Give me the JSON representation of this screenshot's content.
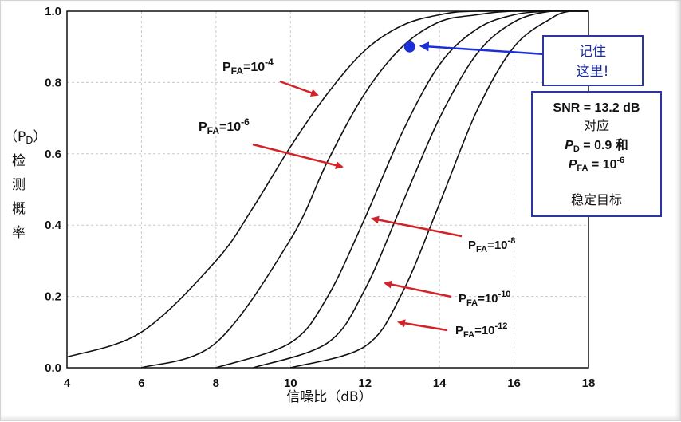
{
  "chart_data": {
    "type": "line",
    "x_ticks": [
      "4",
      "6",
      "8",
      "10",
      "12",
      "14",
      "16",
      "18"
    ],
    "y_ticks": [
      "0.0",
      "0.2",
      "0.4",
      "0.6",
      "0.8",
      "1.0"
    ],
    "xlim": [
      4,
      18
    ],
    "ylim": [
      0,
      1
    ],
    "grid": true,
    "xlabel": "信噪比（dB）",
    "ylabel_prefix": "（P",
    "ylabel_sub": "D",
    "ylabel_suffix": "）",
    "ylabel_chars": [
      "检",
      "测",
      "概",
      "率"
    ],
    "series": [
      {
        "label_base": "P",
        "label_sub": "FA",
        "label_mid": "=10",
        "label_exp": "-4",
        "x": [
          4,
          6,
          8,
          9,
          10,
          11,
          12,
          13,
          14,
          15
        ],
        "y": [
          0.03,
          0.1,
          0.3,
          0.45,
          0.62,
          0.77,
          0.89,
          0.96,
          0.99,
          1.0
        ]
      },
      {
        "label_base": "P",
        "label_sub": "FA",
        "label_mid": "=10",
        "label_exp": "-6",
        "x": [
          6,
          8,
          10,
          11,
          12,
          13,
          14,
          15,
          16
        ],
        "y": [
          0.0,
          0.07,
          0.36,
          0.58,
          0.77,
          0.9,
          0.97,
          0.99,
          1.0
        ]
      },
      {
        "label_base": "P",
        "label_sub": "FA",
        "label_mid": "=10",
        "label_exp": "-8",
        "x": [
          8,
          10,
          11,
          12,
          13,
          14,
          15,
          16,
          17
        ],
        "y": [
          0.0,
          0.07,
          0.2,
          0.42,
          0.66,
          0.85,
          0.95,
          0.99,
          1.0
        ]
      },
      {
        "label_base": "P",
        "label_sub": "FA",
        "label_mid": "=10",
        "label_exp": "-10",
        "x": [
          9,
          11,
          12,
          13,
          14,
          15,
          16,
          17
        ],
        "y": [
          0.0,
          0.07,
          0.22,
          0.46,
          0.7,
          0.88,
          0.97,
          1.0
        ]
      },
      {
        "label_base": "P",
        "label_sub": "FA",
        "label_mid": "=10",
        "label_exp": "-12",
        "x": [
          10,
          12,
          13,
          14,
          15,
          16,
          17,
          17.5
        ],
        "y": [
          0.0,
          0.06,
          0.21,
          0.46,
          0.72,
          0.9,
          0.98,
          1.0
        ]
      }
    ],
    "marker": {
      "x": 13.2,
      "y": 0.9,
      "color": "#1b2fd8"
    },
    "callout1": {
      "lines": [
        "记住",
        "这里!"
      ],
      "color": "#1a2aa8"
    },
    "callout2": {
      "line1": "SNR = 13.2 dB",
      "line2": "对应",
      "line3_var": "P",
      "line3_sub": "D",
      "line3_rest": " = 0.9  和",
      "line4_var": "P",
      "line4_sub": "FA",
      "line4_rest": " = 10",
      "line4_exp": "-6",
      "line5": "稳定目标"
    },
    "colors": {
      "curve": "#111111",
      "arrow": "#d2232a",
      "callout_arrow": "#1b2fd8",
      "box_border": "#2a37a0",
      "grid": "#c8c8c8"
    }
  }
}
